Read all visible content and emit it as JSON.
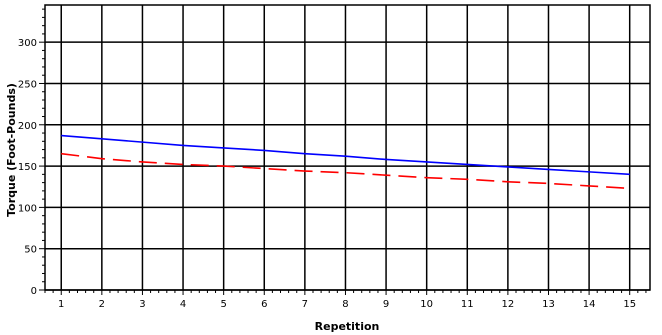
{
  "chart_data": {
    "type": "line",
    "title": "",
    "xlabel": "Repetition",
    "ylabel": "Torque (Foot-Pounds)",
    "x": [
      1,
      2,
      3,
      4,
      5,
      6,
      7,
      8,
      9,
      10,
      11,
      12,
      13,
      14,
      15
    ],
    "xlim": [
      0.6,
      15.5
    ],
    "ylim": [
      0,
      345
    ],
    "y_ticks": [
      0,
      50,
      100,
      150,
      200,
      250,
      300
    ],
    "grid": true,
    "legend": "none",
    "series": [
      {
        "color": "#0000ff",
        "style": "solid",
        "values": [
          187,
          183,
          179,
          175,
          172,
          169,
          165,
          162,
          158,
          155,
          152,
          149,
          146,
          143,
          140
        ]
      },
      {
        "color": "#ff0000",
        "style": "dashed",
        "values": [
          165,
          159,
          155,
          152,
          150,
          147,
          144,
          142,
          139,
          136,
          134,
          131,
          129,
          126,
          123
        ]
      }
    ]
  }
}
